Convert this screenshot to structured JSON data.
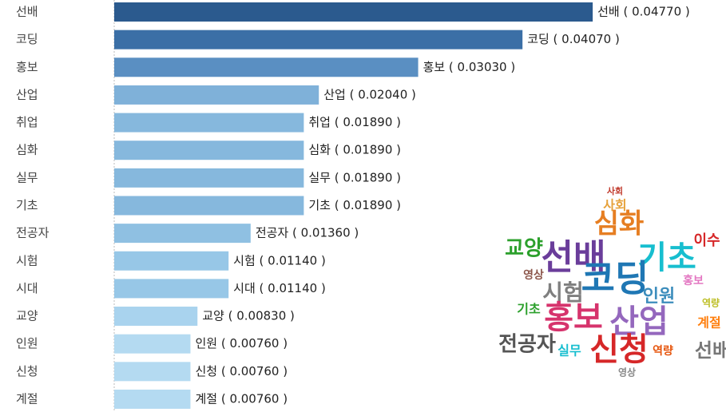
{
  "chart_data": {
    "type": "bar",
    "orientation": "horizontal",
    "categories": [
      "선배",
      "코딩",
      "홍보",
      "산업",
      "취업",
      "심화",
      "실무",
      "기초",
      "전공자",
      "시험",
      "시대",
      "교양",
      "인원",
      "신청",
      "계절"
    ],
    "values": [
      0.0477,
      0.0407,
      0.0303,
      0.0204,
      0.0189,
      0.0189,
      0.0189,
      0.0189,
      0.0136,
      0.0114,
      0.0114,
      0.0083,
      0.0076,
      0.0076,
      0.0076
    ],
    "value_labels": [
      "선배 ( 0.04770 )",
      "코딩 ( 0.04070 )",
      "홍보 ( 0.03030 )",
      "산업 ( 0.02040 )",
      "취업 ( 0.01890 )",
      "심화 ( 0.01890 )",
      "실무 ( 0.01890 )",
      "기초 ( 0.01890 )",
      "전공자 ( 0.01360 )",
      "시험 ( 0.01140 )",
      "시대 ( 0.01140 )",
      "교양 ( 0.00830 )",
      "인원 ( 0.00760 )",
      "신청 ( 0.00760 )",
      "계절 ( 0.00760 )"
    ],
    "colors": [
      "#2b5a8e",
      "#3b6fa6",
      "#5a8fc2",
      "#7fb1d9",
      "#86b8dd",
      "#86b8dd",
      "#86b8dd",
      "#86b8dd",
      "#8fc0e2",
      "#97c7e7",
      "#97c7e7",
      "#a9d3ee",
      "#b4daf1",
      "#b4daf1",
      "#b4daf1"
    ],
    "xlim": [
      0,
      0.05
    ]
  },
  "wordcloud": {
    "words": [
      {
        "text": "사회",
        "color": "#c0392b"
      },
      {
        "text": "사회",
        "color": "#e6a23c"
      },
      {
        "text": "심화",
        "color": "#e67e22"
      },
      {
        "text": "교양",
        "color": "#2ca02c"
      },
      {
        "text": "이수",
        "color": "#d62728"
      },
      {
        "text": "선배",
        "color": "#6a3d9a"
      },
      {
        "text": "기초",
        "color": "#17becf"
      },
      {
        "text": "영상",
        "color": "#8c564b"
      },
      {
        "text": "코딩",
        "color": "#1f77b4"
      },
      {
        "text": "시험",
        "color": "#7f7f7f"
      },
      {
        "text": "인원",
        "color": "#3c8dbc"
      },
      {
        "text": "홍보",
        "color": "#e377c2"
      },
      {
        "text": "역량",
        "color": "#bcbd22"
      },
      {
        "text": "홍보",
        "color": "#d6336c"
      },
      {
        "text": "산업",
        "color": "#9467bd"
      },
      {
        "text": "기초",
        "color": "#2ca02c"
      },
      {
        "text": "계절",
        "color": "#ff7f0e"
      },
      {
        "text": "전공자",
        "color": "#555555"
      },
      {
        "text": "실무",
        "color": "#17becf"
      },
      {
        "text": "신청",
        "color": "#d62728"
      },
      {
        "text": "선배",
        "color": "#777777"
      },
      {
        "text": "역량",
        "color": "#e6550d"
      },
      {
        "text": "영상",
        "color": "#888888"
      }
    ]
  }
}
